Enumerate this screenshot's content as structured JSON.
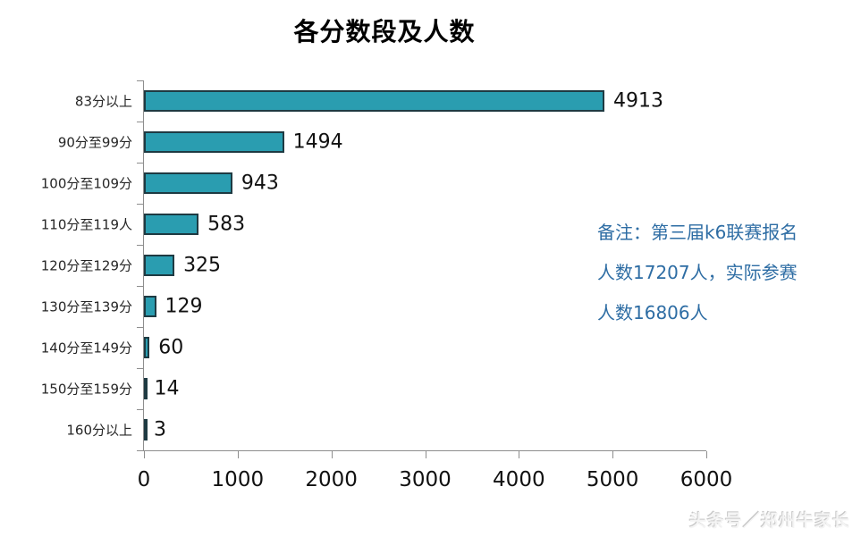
{
  "title": "各分数段及人数",
  "chart_data": {
    "type": "bar",
    "orientation": "horizontal",
    "title": "各分数段及人数",
    "categories": [
      "83分以上",
      "90分至99分",
      "100分至109分",
      "110分至119人",
      "120分至129分",
      "130分至139分",
      "140分至149分",
      "150分至159分",
      "160分以上"
    ],
    "values": [
      4913,
      1494,
      943,
      583,
      325,
      129,
      60,
      14,
      3
    ],
    "xlabel": "",
    "ylabel": "",
    "xlim": [
      0,
      6000
    ],
    "x_ticks": [
      0,
      1000,
      2000,
      3000,
      4000,
      5000,
      6000
    ],
    "grid": false,
    "legend": false,
    "data_labels": true,
    "bar_color": "#2a9db0",
    "bar_border_color": "#1e3a42",
    "axis_color": "#8e8e8e"
  },
  "annotation": {
    "lines": [
      "备注：第三届k6联赛报名",
      "人数17207人，实际参赛",
      "人数16806人"
    ],
    "color": "#2e6da4"
  },
  "watermark": {
    "text": "头条号／郑州牛家长"
  }
}
